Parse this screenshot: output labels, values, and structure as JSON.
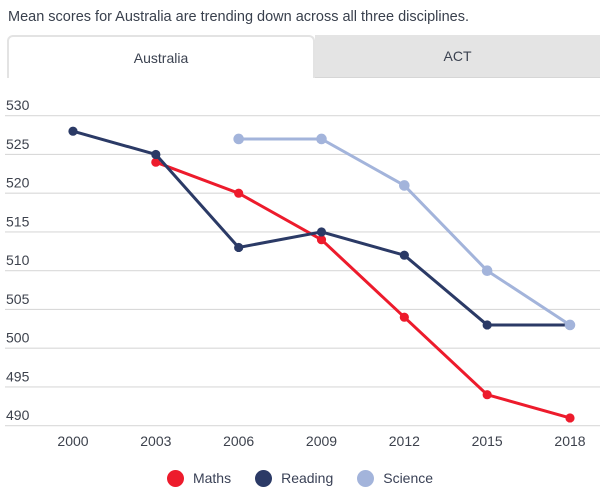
{
  "title": "Mean scores for Australia are trending down across all three disciplines.",
  "tabs": [
    {
      "label": "Australia",
      "active": true
    },
    {
      "label": "ACT",
      "active": false
    }
  ],
  "colors": {
    "maths_red": "#ed1b2c",
    "reading_navy": "#2b3a66",
    "science_blue": "#a3b4db",
    "gridline": "#d9d9d9",
    "tick_text": "#3d424d",
    "title_text": "#39404d",
    "inactive_tab_bg": "#e4e4e4",
    "tab_border": "#e3e3e3",
    "legend_text": "#3a4156"
  },
  "chart_data": {
    "type": "line",
    "x": [
      2000,
      2003,
      2006,
      2009,
      2012,
      2015,
      2018
    ],
    "series": [
      {
        "name": "Maths",
        "color": "#ed1b2c",
        "values": [
          null,
          524,
          520,
          514,
          504,
          494,
          491
        ]
      },
      {
        "name": "Reading",
        "color": "#2b3a66",
        "values": [
          528,
          525,
          513,
          515,
          512,
          503,
          503
        ]
      },
      {
        "name": "Science",
        "color": "#a3b4db",
        "values": [
          null,
          null,
          527,
          527,
          521,
          510,
          503
        ]
      }
    ],
    "title": "Mean scores for Australia are trending down across all three disciplines.",
    "xlabel": "",
    "ylabel": "",
    "ylim": [
      490,
      530
    ],
    "ytick_step": 5,
    "yticks": [
      490,
      495,
      500,
      505,
      510,
      515,
      520,
      525,
      530
    ],
    "grid": true,
    "legend_position": "bottom",
    "legend_entries": [
      "Maths",
      "Reading",
      "Science"
    ]
  }
}
